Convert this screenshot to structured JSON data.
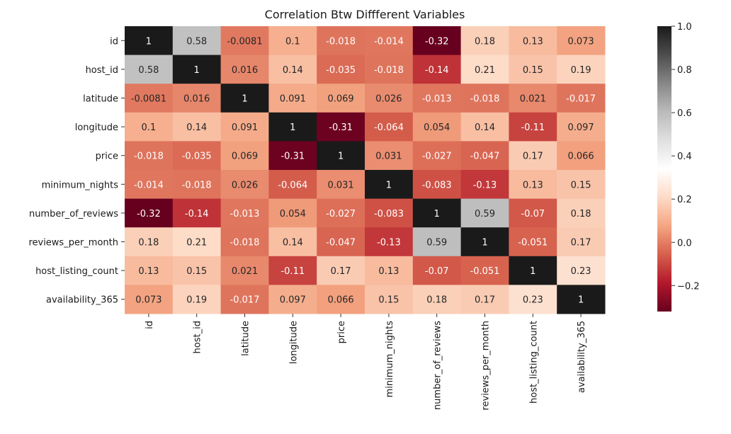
{
  "chart_data": {
    "type": "heatmap",
    "title": "Correlation Btw Diffferent Variables",
    "rows": [
      "id",
      "host_id",
      "latitude",
      "longitude",
      "price",
      "minimum_nights",
      "number_of_reviews",
      "reviews_per_month",
      "host_listing_count",
      "availability_365"
    ],
    "columns": [
      "id",
      "host_id",
      "latitude",
      "longitude",
      "price",
      "minimum_nights",
      "number_of_reviews",
      "reviews_per_month",
      "host_listing_count",
      "availability_365"
    ],
    "values": [
      [
        1,
        0.58,
        -0.0081,
        0.1,
        -0.018,
        -0.014,
        -0.32,
        0.18,
        0.13,
        0.073
      ],
      [
        0.58,
        1,
        0.016,
        0.14,
        -0.035,
        -0.018,
        -0.14,
        0.21,
        0.15,
        0.19
      ],
      [
        -0.0081,
        0.016,
        1,
        0.091,
        0.069,
        0.026,
        -0.013,
        -0.018,
        0.021,
        -0.017
      ],
      [
        0.1,
        0.14,
        0.091,
        1,
        -0.31,
        -0.064,
        0.054,
        0.14,
        -0.11,
        0.097
      ],
      [
        -0.018,
        -0.035,
        0.069,
        -0.31,
        1,
        0.031,
        -0.027,
        -0.047,
        0.17,
        0.066
      ],
      [
        -0.014,
        -0.018,
        0.026,
        -0.064,
        0.031,
        1,
        -0.083,
        -0.13,
        0.13,
        0.15
      ],
      [
        -0.32,
        -0.14,
        -0.013,
        0.054,
        -0.027,
        -0.083,
        1,
        0.59,
        -0.07,
        0.18
      ],
      [
        0.18,
        0.21,
        -0.018,
        0.14,
        -0.047,
        -0.13,
        0.59,
        1,
        -0.051,
        0.17
      ],
      [
        0.13,
        0.15,
        0.021,
        -0.11,
        0.17,
        0.13,
        -0.07,
        -0.051,
        1,
        0.23
      ],
      [
        0.073,
        0.19,
        -0.017,
        0.097,
        0.066,
        0.15,
        0.18,
        0.17,
        0.23,
        1
      ]
    ],
    "colorbar": {
      "colormap": "RdGy reversed (dark red → white → black)",
      "min": -0.32,
      "max": 1.0,
      "ticks": [
        -0.2,
        0.0,
        0.2,
        0.4,
        0.6,
        0.8,
        1.0
      ],
      "tick_labels": [
        "−0.2",
        "0.0",
        "0.2",
        "0.4",
        "0.6",
        "0.8",
        "1.0"
      ]
    },
    "annotated": true,
    "grid": false
  }
}
